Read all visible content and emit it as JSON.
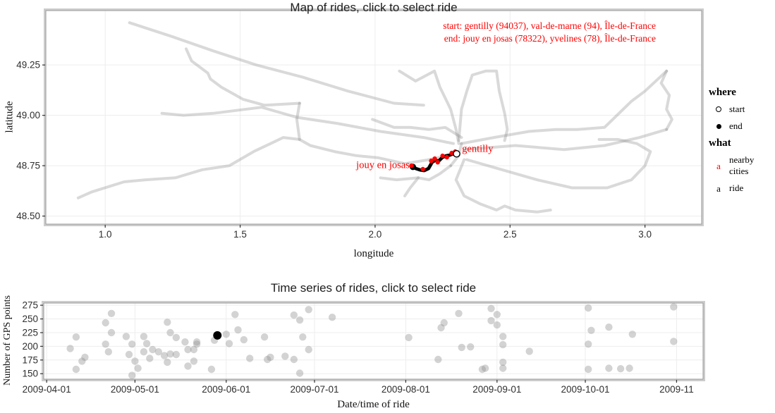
{
  "map_section": {
    "title": "Map of rides, click to select ride",
    "xlabel": "longitude",
    "ylabel": "latitude",
    "annotation": {
      "line1": "start: gentilly (94037), val-de-marne (94), Île-de-France",
      "line2": "end: jouy en josas (78322), yvelines (78), Île-de-France",
      "color": "#ff0000"
    }
  },
  "timeseries_section": {
    "title": "Time series of rides, click to select ride",
    "xlabel": "Date/time of ride",
    "ylabel": "Number of GPS points"
  },
  "legend": {
    "groups": [
      {
        "title": "where",
        "items": [
          {
            "label": "start",
            "marker": "open-circle"
          },
          {
            "label": "end",
            "marker": "filled-circle"
          }
        ]
      },
      {
        "title": "what",
        "items": [
          {
            "label": "nearby cities",
            "marker": "letter-key",
            "key_glyph": "a",
            "color": "#ff0000"
          },
          {
            "label": "ride",
            "marker": "letter-key",
            "key_glyph": "a",
            "color": "#000000"
          }
        ]
      }
    ]
  },
  "chart_data": [
    {
      "id": "map",
      "type": "line",
      "title": "Map of rides, click to select ride",
      "xlabel": "longitude",
      "ylabel": "latitude",
      "xlim": [
        0.78,
        3.21
      ],
      "ylim": [
        48.46,
        49.52
      ],
      "x_ticks": [
        1.0,
        1.5,
        2.0,
        2.5,
        3.0
      ],
      "x_tick_labels": [
        "1.0",
        "1.5",
        "2.0",
        "2.5",
        "3.0"
      ],
      "y_ticks": [
        48.5,
        48.75,
        49.0,
        49.25
      ],
      "y_tick_labels": [
        "48.50",
        "48.75",
        "49.00",
        "49.25"
      ],
      "grid": true,
      "grid_color": "#ededed",
      "track_color": "#808080",
      "track_opacity": 0.3,
      "tracks": [
        [
          [
            1.09,
            49.46
          ],
          [
            1.25,
            49.39
          ],
          [
            1.4,
            49.32
          ],
          [
            1.56,
            49.25
          ],
          [
            1.73,
            49.19
          ],
          [
            1.9,
            49.12
          ],
          [
            2.07,
            49.06
          ],
          [
            2.18,
            49.05
          ]
        ],
        [
          [
            1.3,
            49.33
          ],
          [
            1.32,
            49.27
          ],
          [
            1.38,
            49.21
          ],
          [
            1.39,
            49.18
          ],
          [
            1.43,
            49.14
          ],
          [
            1.51,
            49.08
          ],
          [
            1.59,
            49.05
          ],
          [
            1.72,
            49.06
          ]
        ],
        [
          [
            1.72,
            49.06
          ],
          [
            1.71,
            48.98
          ],
          [
            1.72,
            48.88
          ]
        ],
        [
          [
            1.21,
            49.01
          ],
          [
            1.29,
            49.0
          ],
          [
            1.4,
            49.01
          ],
          [
            1.58,
            49.04
          ],
          [
            1.71,
            48.99
          ],
          [
            1.86,
            48.96
          ],
          [
            2.02,
            48.92
          ],
          [
            2.18,
            48.89
          ],
          [
            2.29,
            48.86
          ]
        ],
        [
          [
            0.9,
            48.59
          ],
          [
            0.95,
            48.62
          ],
          [
            1.07,
            48.67
          ],
          [
            1.15,
            48.68
          ],
          [
            1.26,
            48.69
          ],
          [
            1.36,
            48.73
          ],
          [
            1.46,
            48.75
          ],
          [
            1.55,
            48.82
          ],
          [
            1.66,
            48.89
          ],
          [
            1.72,
            48.88
          ],
          [
            1.76,
            48.85
          ],
          [
            1.85,
            48.82
          ],
          [
            1.93,
            48.8
          ],
          [
            2.01,
            48.79
          ],
          [
            2.11,
            48.76
          ],
          [
            2.2,
            48.78
          ],
          [
            2.3,
            48.81
          ]
        ],
        [
          [
            2.32,
            48.86
          ],
          [
            2.44,
            48.89
          ],
          [
            2.57,
            48.92
          ],
          [
            2.67,
            48.93
          ],
          [
            2.75,
            48.93
          ],
          [
            2.85,
            48.94
          ],
          [
            2.95,
            49.07
          ],
          [
            3.0,
            49.12
          ],
          [
            3.08,
            49.22
          ]
        ],
        [
          [
            3.08,
            49.22
          ],
          [
            3.06,
            49.16
          ],
          [
            3.09,
            49.1
          ],
          [
            3.08,
            49.03
          ],
          [
            3.1,
            48.98
          ],
          [
            3.08,
            48.93
          ]
        ],
        [
          [
            2.33,
            48.83
          ],
          [
            2.52,
            48.85
          ],
          [
            2.7,
            48.83
          ],
          [
            2.85,
            48.85
          ],
          [
            2.98,
            48.89
          ],
          [
            3.08,
            48.93
          ]
        ],
        [
          [
            2.34,
            48.78
          ],
          [
            2.47,
            48.73
          ],
          [
            2.6,
            48.68
          ],
          [
            2.73,
            48.64
          ],
          [
            2.86,
            48.64
          ],
          [
            2.95,
            48.68
          ],
          [
            3.0,
            48.75
          ],
          [
            3.02,
            48.82
          ],
          [
            2.97,
            48.86
          ],
          [
            2.9,
            48.88
          ],
          [
            2.83,
            48.88
          ]
        ],
        [
          [
            2.33,
            48.78
          ],
          [
            2.3,
            48.68
          ],
          [
            2.33,
            48.6
          ],
          [
            2.39,
            48.56
          ],
          [
            2.45,
            48.53
          ],
          [
            2.48,
            48.55
          ],
          [
            2.52,
            48.53
          ],
          [
            2.6,
            48.52
          ],
          [
            2.65,
            48.53
          ]
        ],
        [
          [
            2.31,
            48.875
          ],
          [
            2.32,
            49.03
          ],
          [
            2.34,
            49.12
          ],
          [
            2.36,
            49.2
          ],
          [
            2.41,
            49.22
          ],
          [
            2.45,
            49.22
          ],
          [
            2.46,
            49.12
          ],
          [
            2.48,
            49.01
          ],
          [
            2.49,
            48.93
          ],
          [
            2.48,
            48.875
          ]
        ],
        [
          [
            2.09,
            49.22
          ],
          [
            2.15,
            49.17
          ],
          [
            2.22,
            49.22
          ],
          [
            2.24,
            49.14
          ],
          [
            2.28,
            49.03
          ],
          [
            2.3,
            48.93
          ],
          [
            2.31,
            48.86
          ]
        ],
        [
          [
            2.02,
            48.69
          ],
          [
            2.08,
            48.68
          ],
          [
            2.16,
            48.69
          ],
          [
            2.2,
            48.68
          ],
          [
            2.24,
            48.71
          ],
          [
            2.28,
            48.75
          ]
        ],
        [
          [
            2.16,
            48.69
          ],
          [
            2.13,
            48.64
          ],
          [
            2.11,
            48.6
          ]
        ],
        [
          [
            1.99,
            48.98
          ],
          [
            2.07,
            48.94
          ],
          [
            2.13,
            48.94
          ],
          [
            2.2,
            48.93
          ],
          [
            2.26,
            48.94
          ],
          [
            2.32,
            48.89
          ]
        ],
        [
          [
            2.28,
            48.75
          ],
          [
            2.31,
            48.8
          ],
          [
            2.32,
            48.86
          ]
        ]
      ],
      "selected_ride": {
        "color": "#000000",
        "path": [
          [
            2.138,
            48.746
          ],
          [
            2.151,
            48.736
          ],
          [
            2.167,
            48.729
          ],
          [
            2.182,
            48.726
          ],
          [
            2.198,
            48.736
          ],
          [
            2.211,
            48.767
          ],
          [
            2.224,
            48.778
          ],
          [
            2.234,
            48.771
          ],
          [
            2.25,
            48.792
          ],
          [
            2.263,
            48.799
          ],
          [
            2.276,
            48.802
          ],
          [
            2.289,
            48.809
          ],
          [
            2.302,
            48.809
          ]
        ],
        "start_point": {
          "lon": 2.302,
          "lat": 48.809,
          "marker": "open-circle"
        },
        "end_point": {
          "lon": 2.14,
          "lat": 48.744,
          "marker": "filled-circle"
        },
        "nearby_city_color": "#ff0000",
        "nearby_city_points": [
          [
            2.135,
            48.75
          ],
          [
            2.177,
            48.733
          ],
          [
            2.208,
            48.774
          ],
          [
            2.221,
            48.785
          ],
          [
            2.232,
            48.767
          ],
          [
            2.25,
            48.799
          ],
          [
            2.266,
            48.792
          ],
          [
            2.284,
            48.813
          ],
          [
            2.297,
            48.82
          ]
        ]
      },
      "city_labels": [
        {
          "name": "jouy en josas",
          "lon": 2.128,
          "lat": 48.738,
          "anchor": "end",
          "color": "#ff0000"
        },
        {
          "name": "gentilly",
          "lon": 2.322,
          "lat": 48.818,
          "anchor": "start",
          "color": "#ff0000"
        }
      ]
    },
    {
      "id": "timeseries",
      "type": "scatter",
      "title": "Time series of rides, click to select ride",
      "xlabel": "Date/time of ride",
      "ylabel": "Number of GPS points",
      "xlim": [
        "2009-03-31",
        "2009-11-10"
      ],
      "ylim": [
        140,
        279
      ],
      "x_ticks": [
        "2009-04-01",
        "2009-05-01",
        "2009-06-01",
        "2009-07-01",
        "2009-08-01",
        "2009-09-01",
        "2009-10-01",
        "2009-11-01"
      ],
      "x_tick_labels": [
        "2009-04-01",
        "2009-05-01",
        "2009-06-01",
        "2009-07-01",
        "2009-08-01",
        "2009-09-01",
        "2009-10-01",
        "2009-11"
      ],
      "y_ticks": [
        150,
        175,
        200,
        225,
        250,
        275
      ],
      "grid": true,
      "grid_color": "#ededed",
      "point_color": "#909090",
      "point_opacity": 0.4,
      "points": [
        [
          "2009-04-09",
          196
        ],
        [
          "2009-04-11",
          217
        ],
        [
          "2009-04-11",
          158
        ],
        [
          "2009-04-13",
          173
        ],
        [
          "2009-04-14",
          180
        ],
        [
          "2009-04-21",
          243
        ],
        [
          "2009-04-21",
          204
        ],
        [
          "2009-04-22",
          190
        ],
        [
          "2009-04-23",
          260
        ],
        [
          "2009-04-23",
          225
        ],
        [
          "2009-04-28",
          218
        ],
        [
          "2009-04-29",
          185
        ],
        [
          "2009-04-30",
          204
        ],
        [
          "2009-04-30",
          147
        ],
        [
          "2009-05-01",
          173
        ],
        [
          "2009-05-02",
          160
        ],
        [
          "2009-05-04",
          218
        ],
        [
          "2009-05-04",
          190
        ],
        [
          "2009-05-05",
          205
        ],
        [
          "2009-05-06",
          178
        ],
        [
          "2009-05-07",
          194
        ],
        [
          "2009-05-09",
          190
        ],
        [
          "2009-05-11",
          183
        ],
        [
          "2009-05-12",
          244
        ],
        [
          "2009-05-12",
          171
        ],
        [
          "2009-05-13",
          225
        ],
        [
          "2009-05-13",
          186
        ],
        [
          "2009-05-15",
          216
        ],
        [
          "2009-05-15",
          185
        ],
        [
          "2009-05-18",
          208
        ],
        [
          "2009-05-19",
          194
        ],
        [
          "2009-05-19",
          164
        ],
        [
          "2009-05-21",
          194
        ],
        [
          "2009-05-21",
          173
        ],
        [
          "2009-05-22",
          208
        ],
        [
          "2009-05-22",
          204
        ],
        [
          "2009-05-27",
          158
        ],
        [
          "2009-05-28",
          211
        ],
        [
          "2009-06-01",
          222
        ],
        [
          "2009-06-02",
          205
        ],
        [
          "2009-06-04",
          258
        ],
        [
          "2009-06-05",
          230
        ],
        [
          "2009-06-07",
          212
        ],
        [
          "2009-06-09",
          178
        ],
        [
          "2009-06-14",
          217
        ],
        [
          "2009-06-15",
          176
        ],
        [
          "2009-06-16",
          180
        ],
        [
          "2009-06-21",
          182
        ],
        [
          "2009-06-24",
          176
        ],
        [
          "2009-06-24",
          257
        ],
        [
          "2009-06-26",
          151
        ],
        [
          "2009-06-26",
          248
        ],
        [
          "2009-06-27",
          217
        ],
        [
          "2009-06-29",
          267
        ],
        [
          "2009-06-29",
          194
        ],
        [
          "2009-07-07",
          253
        ],
        [
          "2009-08-02",
          216
        ],
        [
          "2009-08-12",
          176
        ],
        [
          "2009-08-13",
          234
        ],
        [
          "2009-08-14",
          243
        ],
        [
          "2009-08-19",
          260
        ],
        [
          "2009-08-20",
          198
        ],
        [
          "2009-08-23",
          199
        ],
        [
          "2009-08-27",
          158
        ],
        [
          "2009-08-28",
          160
        ],
        [
          "2009-08-30",
          269
        ],
        [
          "2009-08-30",
          247
        ],
        [
          "2009-09-01",
          258
        ],
        [
          "2009-09-01",
          239
        ],
        [
          "2009-09-03",
          218
        ],
        [
          "2009-09-03",
          203
        ],
        [
          "2009-09-03",
          171
        ],
        [
          "2009-09-03",
          160
        ],
        [
          "2009-09-12",
          191
        ],
        [
          "2009-10-02",
          270
        ],
        [
          "2009-10-02",
          204
        ],
        [
          "2009-10-02",
          158
        ],
        [
          "2009-10-03",
          229
        ],
        [
          "2009-10-09",
          235
        ],
        [
          "2009-10-09",
          160
        ],
        [
          "2009-10-13",
          159
        ],
        [
          "2009-10-16",
          160
        ],
        [
          "2009-10-17",
          222
        ],
        [
          "2009-10-31",
          272
        ],
        [
          "2009-10-31",
          209
        ]
      ],
      "selected_point": {
        "date": "2009-05-29",
        "value": 220,
        "color": "#000000"
      }
    }
  ],
  "style": {
    "tick_color": "#333333",
    "tick_label_color": "#2e2e2e",
    "panel_border_outer": "#cccccc",
    "panel_border_inner": "#9a9a9a",
    "accent_red": "#ff0000"
  }
}
